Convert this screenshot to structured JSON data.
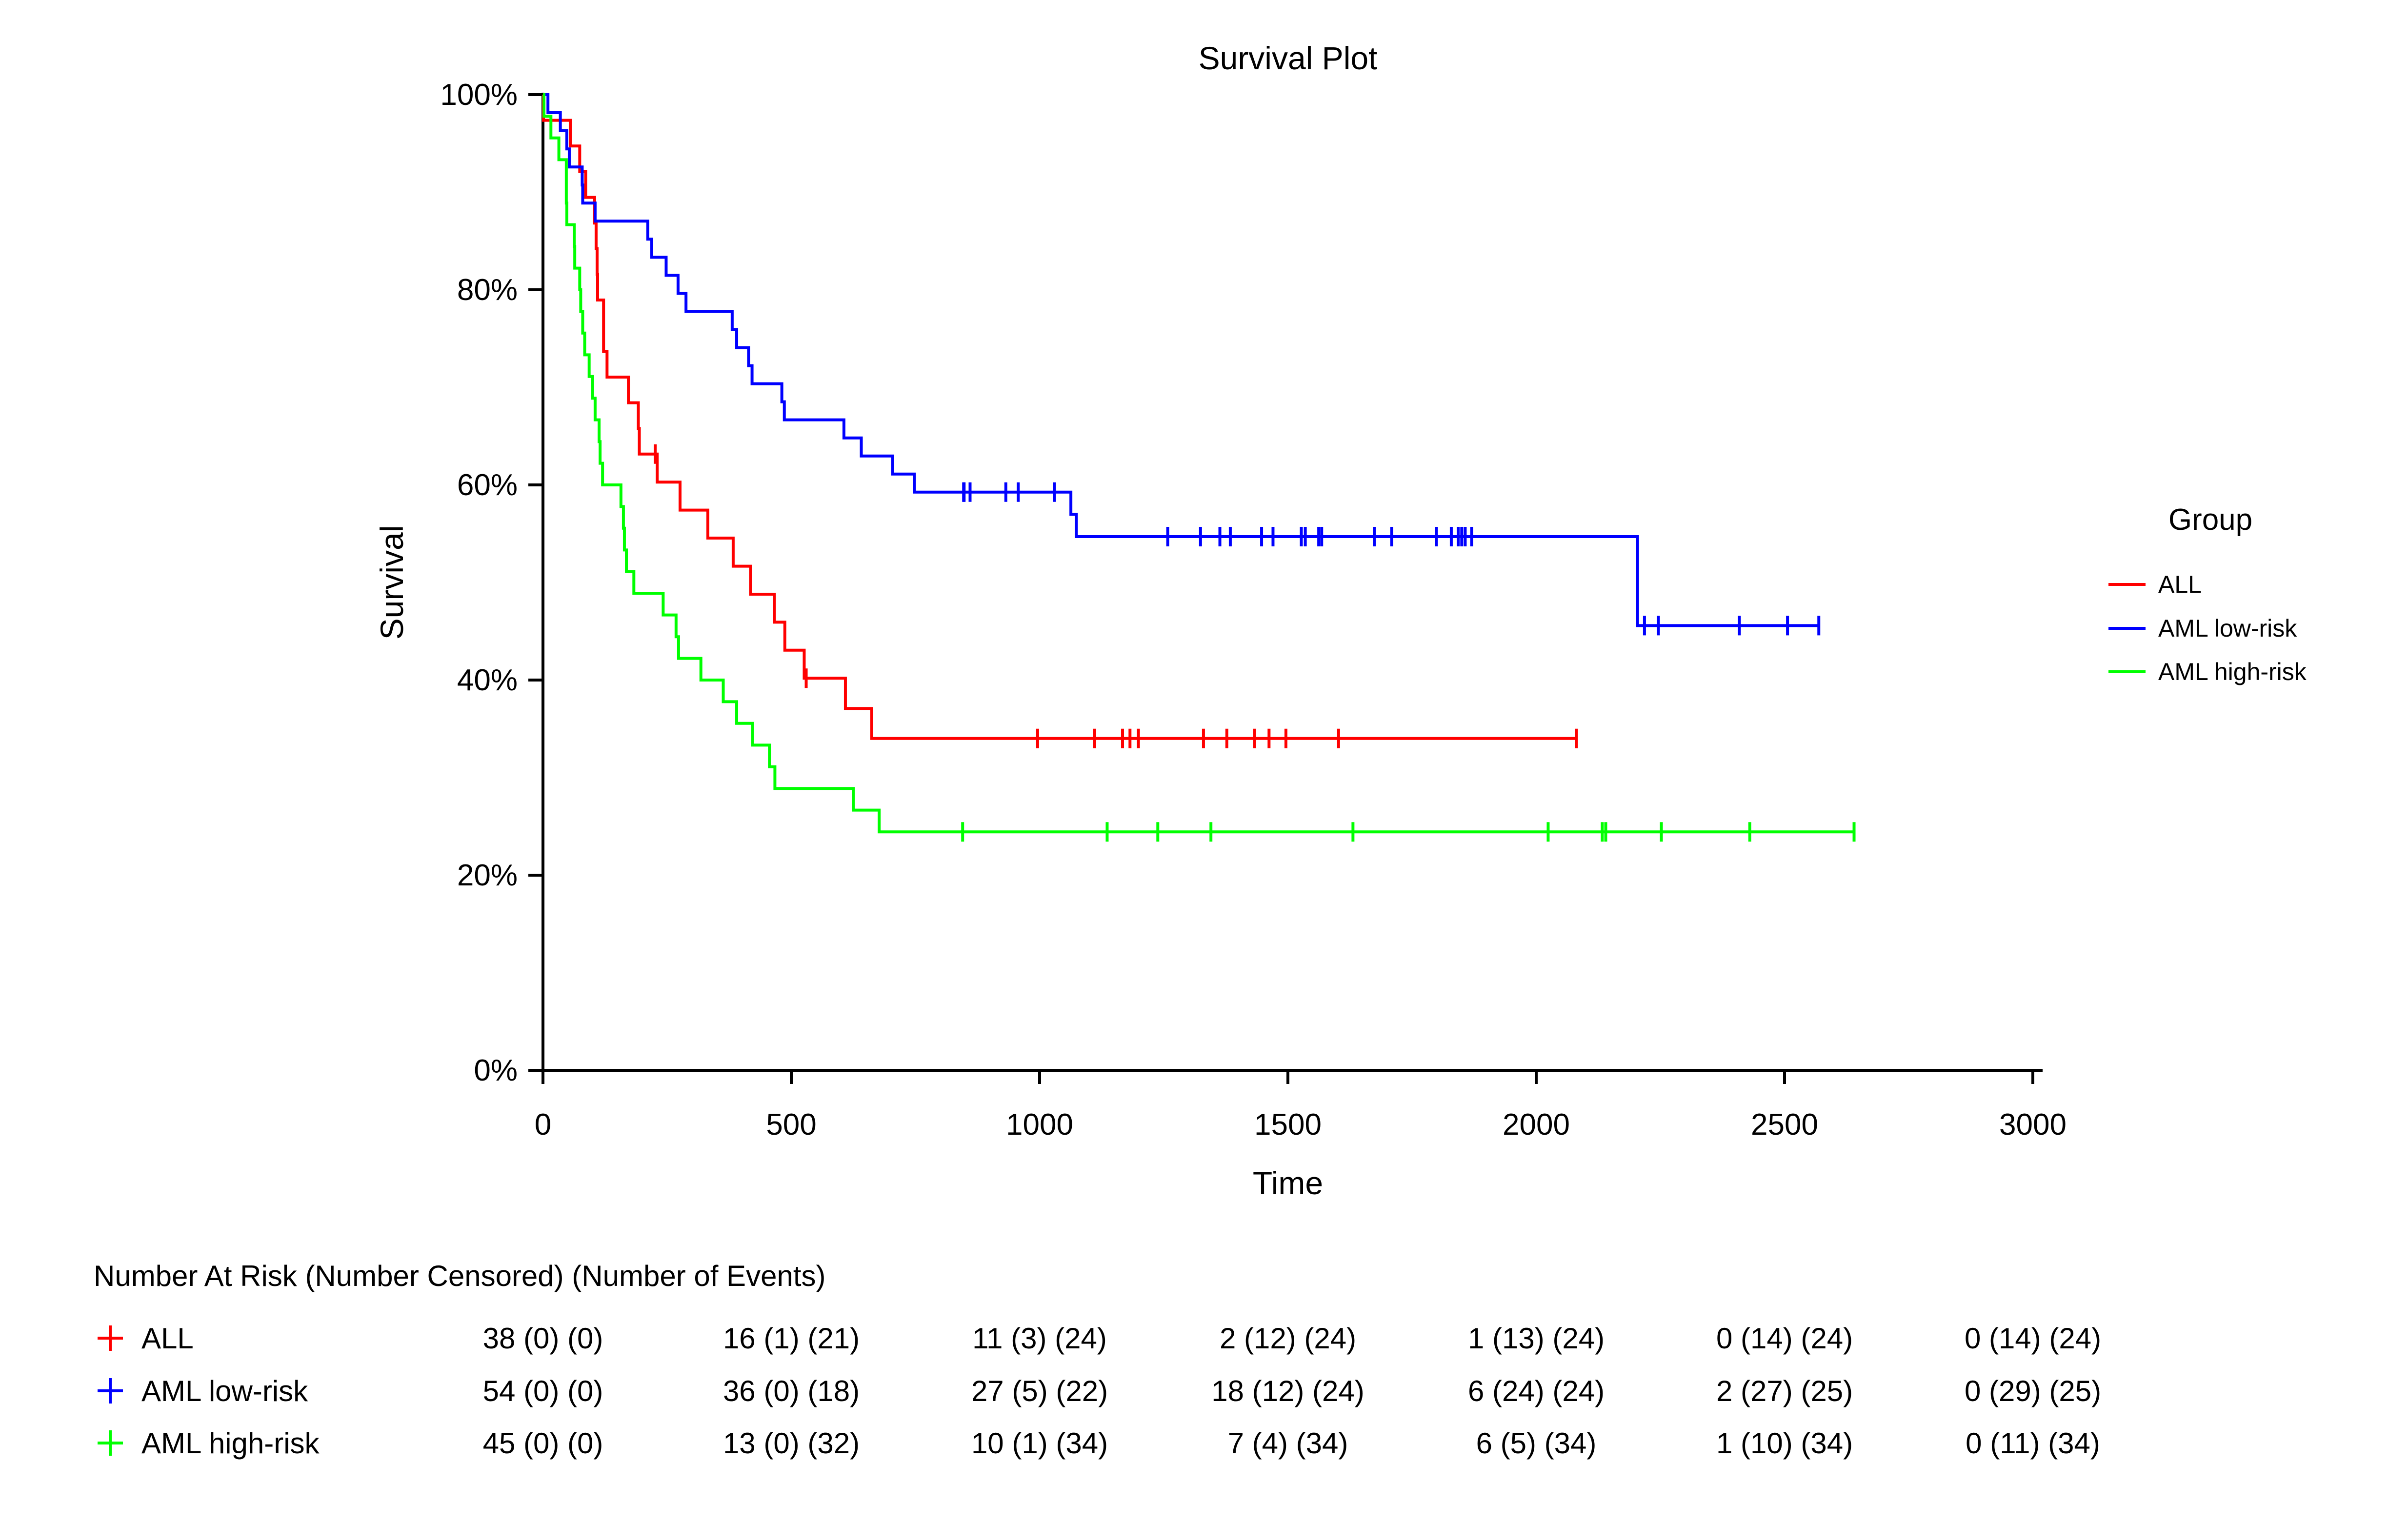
{
  "title": "Survival Plot",
  "axes": {
    "x": {
      "label": "Time",
      "tick_values": [
        0,
        500,
        1000,
        1500,
        2000,
        2500,
        3000
      ],
      "range": [
        0,
        3000
      ]
    },
    "y": {
      "label": "Survival",
      "tick_labels": [
        "0%",
        "20%",
        "40%",
        "60%",
        "80%",
        "100%"
      ],
      "tick_values": [
        0,
        20,
        40,
        60,
        80,
        100
      ],
      "range": [
        0,
        100
      ]
    }
  },
  "legend": {
    "title": "Group",
    "entries": [
      {
        "label": "ALL",
        "color": "#ff0000"
      },
      {
        "label": "AML low-risk",
        "color": "#0000ff"
      },
      {
        "label": "AML high-risk",
        "color": "#00ff00"
      }
    ]
  },
  "risk_table": {
    "header": "Number At Risk (Number Censored) (Number of Events)",
    "times": [
      0,
      500,
      1000,
      1500,
      2000,
      2500,
      3000
    ],
    "rows": [
      {
        "label": "ALL",
        "color": "#ff0000",
        "values": [
          "38 (0) (0)",
          "16 (1) (21)",
          "11 (3) (24)",
          "2 (12) (24)",
          "1 (13) (24)",
          "0 (14) (24)",
          "0 (14) (24)"
        ]
      },
      {
        "label": "AML low-risk",
        "color": "#0000ff",
        "values": [
          "54 (0) (0)",
          "36 (0) (18)",
          "27 (5) (22)",
          "18 (12) (24)",
          "6 (24) (24)",
          "2 (27) (25)",
          "0 (29) (25)"
        ]
      },
      {
        "label": "AML high-risk",
        "color": "#00ff00",
        "values": [
          "45 (0) (0)",
          "13 (0) (32)",
          "10 (1) (34)",
          "7 (4) (34)",
          "6 (5) (34)",
          "1 (10) (34)",
          "0 (11) (34)"
        ]
      }
    ]
  },
  "chart_data": {
    "type": "line",
    "subtype": "kaplan-meier-step",
    "title": "Survival Plot",
    "xlabel": "Time",
    "ylabel": "Survival",
    "xlim": [
      0,
      3000
    ],
    "ylim_percent": [
      0,
      100
    ],
    "grid": false,
    "legend_position": "right",
    "series": [
      {
        "name": "ALL",
        "color": "#ff0000",
        "start": [
          0,
          100
        ],
        "steps": [
          [
            1,
            97.37
          ],
          [
            55,
            94.74
          ],
          [
            74,
            92.11
          ],
          [
            86,
            89.47
          ],
          [
            104,
            86.84
          ],
          [
            107,
            84.21
          ],
          [
            109,
            81.58
          ],
          [
            110,
            78.95
          ],
          [
            122,
            73.68
          ],
          [
            129,
            71.05
          ],
          [
            172,
            68.42
          ],
          [
            192,
            65.79
          ],
          [
            194,
            63.16
          ],
          [
            230,
            60.29
          ],
          [
            276,
            57.42
          ],
          [
            332,
            54.55
          ],
          [
            383,
            51.67
          ],
          [
            418,
            48.8
          ],
          [
            466,
            45.93
          ],
          [
            487,
            43.06
          ],
          [
            526,
            40.19
          ],
          [
            609,
            37.09
          ],
          [
            662,
            34.01
          ]
        ],
        "end_time": 2081,
        "censor_marks": [
          [
            226,
            63.16
          ],
          [
            530,
            40.19
          ],
          [
            996,
            34.01
          ],
          [
            1111,
            34.01
          ],
          [
            1167,
            34.01
          ],
          [
            1182,
            34.01
          ],
          [
            1199,
            34.01
          ],
          [
            1330,
            34.01
          ],
          [
            1377,
            34.01
          ],
          [
            1433,
            34.01
          ],
          [
            1462,
            34.01
          ],
          [
            1496,
            34.01
          ],
          [
            1602,
            34.01
          ],
          [
            2081,
            34.01
          ]
        ]
      },
      {
        "name": "AML low-risk",
        "color": "#0000ff",
        "start": [
          0,
          100
        ],
        "steps": [
          [
            10,
            98.15
          ],
          [
            35,
            96.3
          ],
          [
            48,
            94.44
          ],
          [
            53,
            92.59
          ],
          [
            79,
            90.74
          ],
          [
            80,
            88.89
          ],
          [
            105,
            87.04
          ],
          [
            211,
            85.19
          ],
          [
            219,
            83.33
          ],
          [
            248,
            81.48
          ],
          [
            272,
            79.63
          ],
          [
            288,
            77.78
          ],
          [
            381,
            75.93
          ],
          [
            390,
            74.07
          ],
          [
            414,
            72.22
          ],
          [
            421,
            70.37
          ],
          [
            481,
            68.52
          ],
          [
            486,
            66.67
          ],
          [
            606,
            64.81
          ],
          [
            641,
            62.96
          ],
          [
            704,
            61.11
          ],
          [
            748,
            59.26
          ],
          [
            1063,
            56.98
          ],
          [
            1074,
            54.7
          ],
          [
            2204,
            45.58
          ]
        ],
        "end_time": 2569,
        "censor_marks": [
          [
            847,
            59.26
          ],
          [
            848,
            59.26
          ],
          [
            860,
            59.26
          ],
          [
            932,
            59.26
          ],
          [
            957,
            59.26
          ],
          [
            1030,
            59.26
          ],
          [
            1258,
            54.7
          ],
          [
            1324,
            54.7
          ],
          [
            1363,
            54.7
          ],
          [
            1384,
            54.7
          ],
          [
            1447,
            54.7
          ],
          [
            1470,
            54.7
          ],
          [
            1527,
            54.7
          ],
          [
            1535,
            54.7
          ],
          [
            1562,
            54.7
          ],
          [
            1568,
            54.7
          ],
          [
            1674,
            54.7
          ],
          [
            1709,
            54.7
          ],
          [
            1799,
            54.7
          ],
          [
            1829,
            54.7
          ],
          [
            1843,
            54.7
          ],
          [
            1850,
            54.7
          ],
          [
            1857,
            54.7
          ],
          [
            1870,
            54.7
          ],
          [
            2218,
            45.58
          ],
          [
            2246,
            45.58
          ],
          [
            2409,
            45.58
          ],
          [
            2506,
            45.58
          ],
          [
            2569,
            45.58
          ]
        ]
      },
      {
        "name": "AML high-risk",
        "color": "#00ff00",
        "start": [
          0,
          100
        ],
        "steps": [
          [
            2,
            97.78
          ],
          [
            16,
            95.56
          ],
          [
            32,
            93.33
          ],
          [
            47,
            88.89
          ],
          [
            48,
            86.67
          ],
          [
            63,
            84.44
          ],
          [
            64,
            82.22
          ],
          [
            74,
            80.0
          ],
          [
            76,
            77.78
          ],
          [
            80,
            75.56
          ],
          [
            84,
            73.33
          ],
          [
            93,
            71.11
          ],
          [
            100,
            68.89
          ],
          [
            105,
            66.67
          ],
          [
            113,
            64.44
          ],
          [
            115,
            62.22
          ],
          [
            120,
            60.0
          ],
          [
            157,
            57.78
          ],
          [
            162,
            55.56
          ],
          [
            164,
            53.33
          ],
          [
            168,
            51.11
          ],
          [
            183,
            48.89
          ],
          [
            242,
            46.67
          ],
          [
            268,
            44.44
          ],
          [
            273,
            42.22
          ],
          [
            318,
            40.0
          ],
          [
            363,
            37.78
          ],
          [
            390,
            35.56
          ],
          [
            422,
            33.33
          ],
          [
            456,
            31.11
          ],
          [
            467,
            28.89
          ],
          [
            625,
            26.67
          ],
          [
            677,
            24.44
          ]
        ],
        "end_time": 2640,
        "censor_marks": [
          [
            845,
            24.44
          ],
          [
            1136,
            24.44
          ],
          [
            1238,
            24.44
          ],
          [
            1345,
            24.44
          ],
          [
            1631,
            24.44
          ],
          [
            2024,
            24.44
          ],
          [
            2133,
            24.44
          ],
          [
            2140,
            24.44
          ],
          [
            2252,
            24.44
          ],
          [
            2430,
            24.44
          ],
          [
            2640,
            24.44
          ]
        ]
      }
    ]
  }
}
